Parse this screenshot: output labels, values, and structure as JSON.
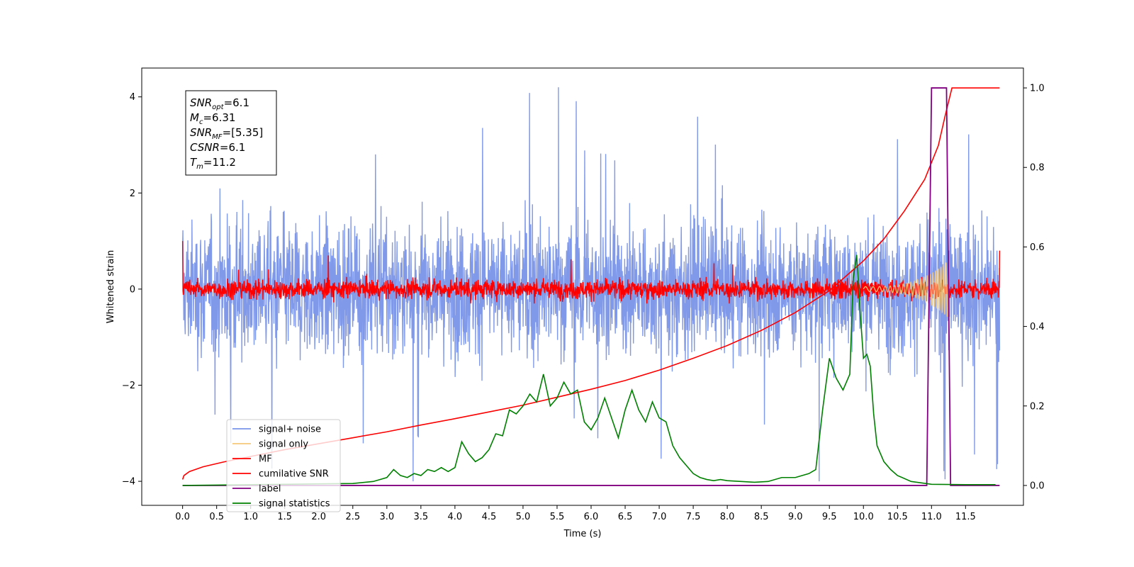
{
  "chart_data": {
    "type": "line",
    "title": "",
    "xlabel": "Time (s)",
    "ylabel": "Whitened strain",
    "xlim": [
      -0.6,
      12.35
    ],
    "ylim_left": [
      -4.5,
      4.6
    ],
    "ylim_right": [
      -0.05,
      1.05
    ],
    "x_ticks": [
      0.0,
      0.5,
      1.0,
      1.5,
      2.0,
      2.5,
      3.0,
      3.5,
      4.0,
      4.5,
      5.0,
      5.5,
      6.0,
      6.5,
      7.0,
      7.5,
      8.0,
      8.5,
      9.0,
      9.5,
      10.0,
      10.5,
      11.0,
      11.5
    ],
    "x_tick_labels": [
      "0.0",
      "0.5",
      "1.0",
      "1.5",
      "2.0",
      "2.5",
      "3.0",
      "3.5",
      "4.0",
      "4.5",
      "5.0",
      "5.5",
      "6.0",
      "6.5",
      "7.0",
      "7.5",
      "8.0",
      "8.5",
      "9.0",
      "9.5",
      "10.0",
      "10.5",
      "11.0",
      "11.5"
    ],
    "y_left_ticks": [
      -4,
      -2,
      0,
      2,
      4
    ],
    "y_left_tick_labels": [
      "−4",
      "−2",
      "0",
      "2",
      "4"
    ],
    "y_right_ticks": [
      0.0,
      0.2,
      0.4,
      0.6,
      0.8,
      1.0
    ],
    "y_right_tick_labels": [
      "0.0",
      "0.2",
      "0.4",
      "0.6",
      "0.8",
      "1.0"
    ],
    "grid": false,
    "legend_position": "lower-left",
    "annotation": [
      {
        "base": "SNR",
        "sub": "opt",
        "value": "=6.1"
      },
      {
        "base": "M",
        "sub": "c",
        "value": "=6.31"
      },
      {
        "base": "SNR",
        "sub": "MF",
        "value": "=[5.35]"
      },
      {
        "base": "CSNR",
        "sub": "",
        "value": "=6.1"
      },
      {
        "base": "T",
        "sub": "m",
        "value": "=11.2"
      }
    ],
    "series": [
      {
        "name": "signal+ noise",
        "color": "#7a94e8",
        "axis": "left",
        "kind": "noise",
        "x_range": [
          0.0,
          12.0
        ],
        "mean": 0.0,
        "typical_range": [
          -2.3,
          2.5
        ],
        "extreme_range": [
          -4.0,
          4.2
        ],
        "min_at": [
          9.35,
          -4.0
        ],
        "max_at": [
          5.52,
          4.2
        ]
      },
      {
        "name": "signal only",
        "color": "#f5c97a",
        "axis": "left",
        "kind": "chirp",
        "x_range": [
          10.0,
          11.25
        ],
        "amplitude_end": 0.55
      },
      {
        "name": "MF",
        "color": "#ff0000",
        "axis": "left",
        "kind": "noise",
        "x_range": [
          0.0,
          12.0
        ],
        "mean": 0.0,
        "typical_range": [
          -0.3,
          0.4
        ],
        "extreme_range": [
          -0.3,
          1.0
        ]
      },
      {
        "name": "cumilative SNR",
        "color": "#ff0000",
        "axis": "right",
        "x": [
          0.0,
          0.02,
          0.1,
          0.3,
          0.6,
          1.0,
          1.5,
          2.0,
          2.5,
          3.0,
          3.5,
          4.0,
          4.5,
          5.0,
          5.5,
          6.0,
          6.5,
          7.0,
          7.5,
          8.0,
          8.5,
          9.0,
          9.5,
          10.0,
          10.3,
          10.6,
          10.9,
          11.1,
          11.2,
          11.3,
          12.0
        ],
        "y": [
          0.015,
          0.025,
          0.035,
          0.047,
          0.059,
          0.073,
          0.09,
          0.105,
          0.12,
          0.135,
          0.152,
          0.168,
          0.185,
          0.202,
          0.222,
          0.242,
          0.264,
          0.29,
          0.32,
          0.352,
          0.39,
          0.435,
          0.49,
          0.565,
          0.62,
          0.69,
          0.77,
          0.855,
          0.93,
          1.0,
          1.0
        ]
      },
      {
        "name": "label",
        "color": "#800080",
        "axis": "right",
        "x": [
          0.0,
          10.93,
          11.0,
          11.22,
          11.28,
          12.0
        ],
        "y": [
          0.0,
          0.0,
          1.0,
          1.0,
          0.0,
          0.0
        ]
      },
      {
        "name": "signal statistics",
        "color": "#008000",
        "axis": "right",
        "x": [
          0.0,
          0.5,
          1.0,
          1.5,
          2.0,
          2.5,
          2.8,
          3.0,
          3.1,
          3.2,
          3.3,
          3.4,
          3.5,
          3.6,
          3.7,
          3.8,
          3.9,
          4.0,
          4.1,
          4.2,
          4.3,
          4.4,
          4.5,
          4.6,
          4.7,
          4.8,
          4.9,
          5.0,
          5.1,
          5.2,
          5.3,
          5.4,
          5.5,
          5.6,
          5.7,
          5.8,
          5.9,
          6.0,
          6.1,
          6.2,
          6.3,
          6.4,
          6.5,
          6.6,
          6.7,
          6.8,
          6.9,
          7.0,
          7.1,
          7.2,
          7.3,
          7.4,
          7.5,
          7.6,
          7.7,
          7.8,
          7.9,
          8.0,
          8.2,
          8.4,
          8.6,
          8.8,
          9.0,
          9.2,
          9.3,
          9.4,
          9.5,
          9.6,
          9.7,
          9.8,
          9.85,
          9.9,
          9.95,
          10.0,
          10.05,
          10.1,
          10.15,
          10.2,
          10.3,
          10.4,
          10.5,
          10.7,
          11.0,
          11.5,
          11.94
        ],
        "y": [
          0.0,
          0.001,
          0.002,
          0.003,
          0.004,
          0.005,
          0.01,
          0.02,
          0.04,
          0.025,
          0.02,
          0.03,
          0.025,
          0.04,
          0.035,
          0.045,
          0.035,
          0.045,
          0.11,
          0.08,
          0.06,
          0.07,
          0.09,
          0.13,
          0.125,
          0.19,
          0.18,
          0.2,
          0.23,
          0.21,
          0.28,
          0.2,
          0.22,
          0.26,
          0.23,
          0.24,
          0.16,
          0.14,
          0.17,
          0.22,
          0.17,
          0.12,
          0.19,
          0.24,
          0.19,
          0.16,
          0.21,
          0.17,
          0.16,
          0.1,
          0.07,
          0.05,
          0.03,
          0.02,
          0.015,
          0.012,
          0.015,
          0.012,
          0.01,
          0.008,
          0.01,
          0.02,
          0.02,
          0.03,
          0.04,
          0.19,
          0.32,
          0.27,
          0.24,
          0.28,
          0.52,
          0.58,
          0.44,
          0.32,
          0.33,
          0.3,
          0.18,
          0.1,
          0.06,
          0.04,
          0.025,
          0.01,
          0.003,
          0.002,
          0.002
        ]
      }
    ]
  }
}
